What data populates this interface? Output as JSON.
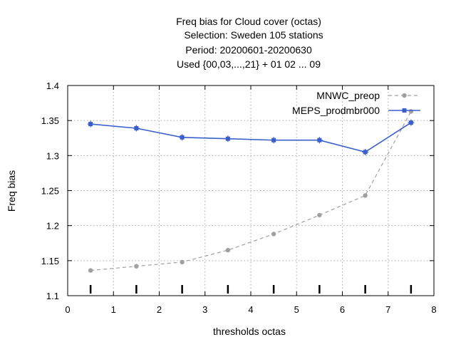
{
  "chart_data": {
    "type": "line",
    "title_lines": [
      "Freq bias  for Cloud cover (octas)",
      "Selection: Sweden    105 stations",
      "Period: 20200601-20200630",
      "Used {00,03,...,21} + 01 02 ... 09"
    ],
    "xlabel": "thresholds octas",
    "ylabel": "Freq bias",
    "xlim": [
      0,
      8
    ],
    "ylim": [
      1.1,
      1.4
    ],
    "x_ticks": [
      "0",
      "1",
      "2",
      "3",
      "4",
      "5",
      "6",
      "7",
      "8"
    ],
    "y_ticks": [
      "1.1",
      "1.15",
      "1.2",
      "1.25",
      "1.3",
      "1.35",
      "1.4"
    ],
    "grid": true,
    "legend_position": "top-right",
    "series": [
      {
        "name": "MNWC_preop",
        "color": "#a0a0a0",
        "line_style": "dashed",
        "marker": "circle",
        "x": [
          0.5,
          1.5,
          2.5,
          3.5,
          4.5,
          5.5,
          6.5,
          7.5
        ],
        "values": [
          1.136,
          1.142,
          1.148,
          1.165,
          1.188,
          1.215,
          1.243,
          1.363
        ]
      },
      {
        "name": "MEPS_prodmbr000",
        "color": "#3a5fcd",
        "line_style": "solid",
        "marker": "square",
        "x": [
          0.5,
          1.5,
          2.5,
          3.5,
          4.5,
          5.5,
          6.5,
          7.5
        ],
        "values": [
          1.345,
          1.339,
          1.326,
          1.324,
          1.322,
          1.322,
          1.305,
          1.347
        ]
      }
    ],
    "threshold_marks_x": [
      0.5,
      1.5,
      2.5,
      3.5,
      4.5,
      5.5,
      6.5,
      7.5
    ]
  }
}
